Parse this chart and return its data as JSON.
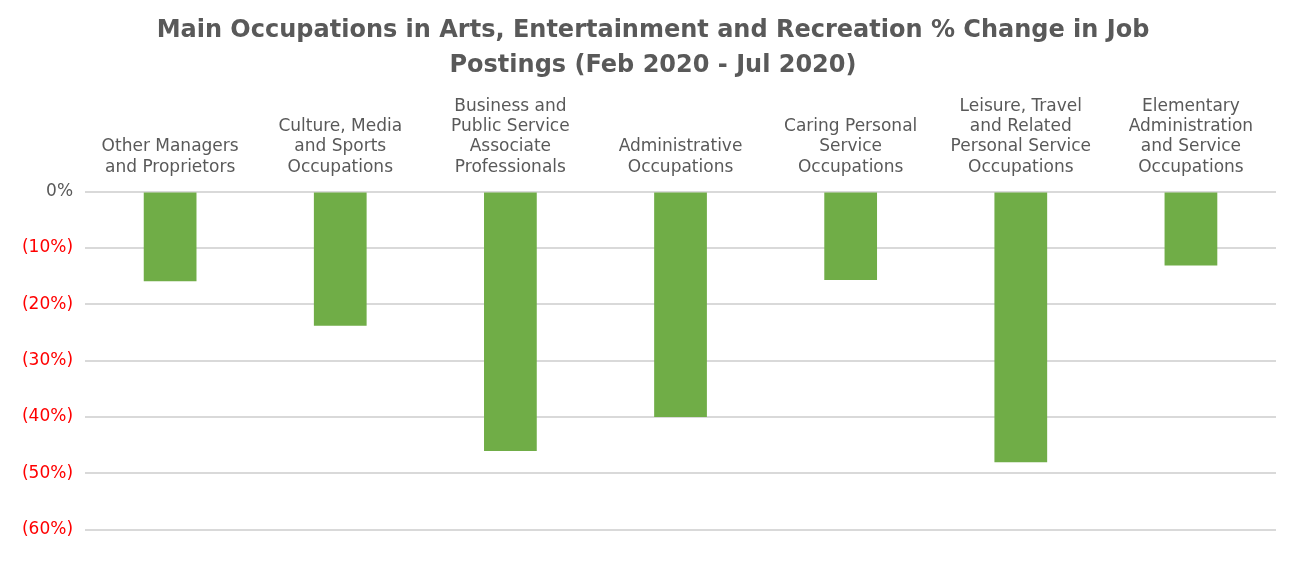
{
  "chart_data": {
    "type": "bar",
    "title": "Main Occupations in Arts, Entertainment and Recreation % Change in Job Postings (Feb 2020 - Jul 2020)",
    "categories": [
      "Other Managers and Proprietors",
      "Culture, Media and Sports Occupations",
      "Business and Public Service Associate Professionals",
      "Administrative Occupations",
      "Caring Personal Service Occupations",
      "Leisure, Travel and Related Personal Service Occupations",
      "Elementary Administration and Service Occupations"
    ],
    "values": [
      -15.9,
      -23.8,
      -46,
      -40,
      -15.7,
      -48,
      -13.1
    ],
    "color": "#70ad47",
    "ylim": [
      -60,
      0
    ],
    "yticks": [
      {
        "value": 0,
        "label": "0%"
      },
      {
        "value": -10,
        "label": "(10%)"
      },
      {
        "value": -20,
        "label": "(20%)"
      },
      {
        "value": -30,
        "label": "(30%)"
      },
      {
        "value": -40,
        "label": "(40%)"
      },
      {
        "value": -50,
        "label": "(50%)"
      },
      {
        "value": -60,
        "label": "(60%)"
      }
    ],
    "grid": "y",
    "legend": false
  }
}
